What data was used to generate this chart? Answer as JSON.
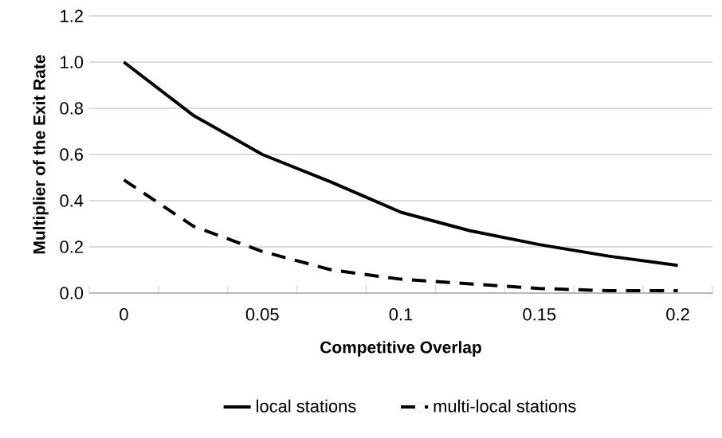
{
  "chart_data": {
    "type": "line",
    "xlabel": "Competitive Overlap",
    "ylabel": "Multiplier of the Exit Rate",
    "categories": [
      "0",
      null,
      "0.05",
      null,
      "0.1",
      null,
      "0.15",
      null,
      "0.2"
    ],
    "series": [
      {
        "name": "local stations",
        "color": "#000000",
        "line_style": "solid",
        "values": [
          1.0,
          0.77,
          0.6,
          0.48,
          0.35,
          0.27,
          0.21,
          0.16,
          0.12
        ]
      },
      {
        "name": "multi-local stations",
        "color": "#000000",
        "line_style": "dashed",
        "values": [
          0.49,
          0.29,
          0.18,
          0.1,
          0.06,
          0.04,
          0.02,
          0.01,
          0.01
        ]
      }
    ],
    "ylim": [
      0,
      1.2
    ],
    "yticks": [
      {
        "value": 0,
        "label": "0.0"
      },
      {
        "value": 0.2,
        "label": "0.2"
      },
      {
        "value": 0.4,
        "label": "0.4"
      },
      {
        "value": 0.6,
        "label": "0.6"
      },
      {
        "value": 0.8,
        "label": "0.8"
      },
      {
        "value": 1.0,
        "label": "1.0"
      },
      {
        "value": 1.2,
        "label": "1.2"
      }
    ],
    "grid": "y",
    "legend": "bottom",
    "marker": "none"
  }
}
